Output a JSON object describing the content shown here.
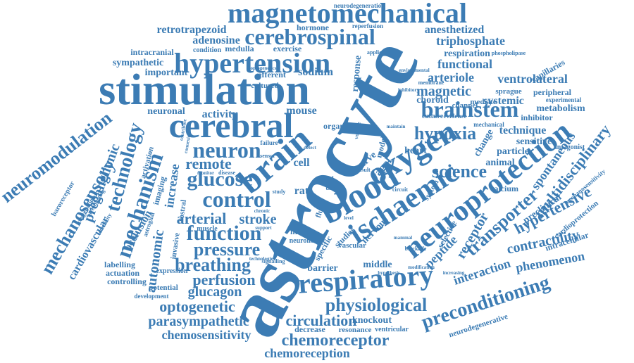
{
  "color": "#3c7cb4",
  "words": [
    {
      "id": "astrocyte",
      "text": "astrocyte"
    },
    {
      "id": "stimulation",
      "text": "stimulation"
    },
    {
      "id": "magnetomechanical",
      "text": "magnetomechanical"
    },
    {
      "id": "hypertension",
      "text": "hypertension"
    },
    {
      "id": "cerebrospinal",
      "text": "cerebrospinal"
    },
    {
      "id": "cerebral",
      "text": "cerebral"
    },
    {
      "id": "brain",
      "text": "brain"
    },
    {
      "id": "oxygen",
      "text": "oxygen"
    },
    {
      "id": "blood",
      "text": "blood"
    },
    {
      "id": "ischaemic",
      "text": "ischaemic"
    },
    {
      "id": "neuroprotection",
      "text": "neuroprotection"
    },
    {
      "id": "respiratory",
      "text": "respiratory"
    },
    {
      "id": "brainstem",
      "text": "brainstem"
    },
    {
      "id": "neuron",
      "text": "neuron"
    },
    {
      "id": "control",
      "text": "control"
    },
    {
      "id": "glucose",
      "text": "glucose"
    },
    {
      "id": "function",
      "text": "function"
    },
    {
      "id": "pressure",
      "text": "pressure"
    },
    {
      "id": "mechanism",
      "text": "mechanism"
    },
    {
      "id": "technology",
      "text": "technology"
    },
    {
      "id": "neuromodulation",
      "text": "neuromodulation"
    },
    {
      "id": "mechanosensory",
      "text": "mechanosensory"
    },
    {
      "id": "preconditioning",
      "text": "preconditioning"
    },
    {
      "id": "physiological",
      "text": "physiological"
    },
    {
      "id": "chemoreceptor",
      "text": "chemoreceptor"
    },
    {
      "id": "chemoreception",
      "text": "chemoreception"
    },
    {
      "id": "circulation",
      "text": "circulation"
    },
    {
      "id": "breathing",
      "text": "breathing"
    },
    {
      "id": "perfusion",
      "text": "perfusion"
    },
    {
      "id": "glucagon",
      "text": "glucagon"
    },
    {
      "id": "optogenetic",
      "text": "optogenetic"
    },
    {
      "id": "parasympathetic",
      "text": "parasympathetic"
    },
    {
      "id": "chemosensitivity",
      "text": "chemosensitivity"
    },
    {
      "id": "hypoxia",
      "text": "hypoxia"
    },
    {
      "id": "science",
      "text": "science"
    },
    {
      "id": "transporter",
      "text": "transporter"
    },
    {
      "id": "multidisciplinary",
      "text": "multidisciplinary"
    },
    {
      "id": "hypertensive",
      "text": "hypertensive"
    },
    {
      "id": "contractility",
      "text": "contractility"
    },
    {
      "id": "phenomenon",
      "text": "phenomenon"
    },
    {
      "id": "interaction",
      "text": "interaction"
    },
    {
      "id": "receptor",
      "text": "receptor"
    },
    {
      "id": "peptide",
      "text": "peptide"
    },
    {
      "id": "arterial",
      "text": "arterial"
    },
    {
      "id": "stroke",
      "text": "stroke"
    },
    {
      "id": "remote",
      "text": "remote"
    },
    {
      "id": "autonomic",
      "text": "autonomic"
    },
    {
      "id": "increase",
      "text": "increase"
    },
    {
      "id": "preganglionic",
      "text": "preganglionic"
    },
    {
      "id": "cardiovascular",
      "text": "cardiovascular"
    },
    {
      "id": "occlusion",
      "text": "occlusion"
    },
    {
      "id": "retrotrapezoid",
      "text": "retrotrapezoid"
    },
    {
      "id": "adenosine",
      "text": "adenosine"
    },
    {
      "id": "triphosphate",
      "text": "triphosphate"
    },
    {
      "id": "anesthetized",
      "text": "anesthetized"
    },
    {
      "id": "respiration",
      "text": "respiration"
    },
    {
      "id": "functional",
      "text": "functional"
    },
    {
      "id": "arteriole",
      "text": "arteriole"
    },
    {
      "id": "ventrolateral",
      "text": "ventrolateral"
    },
    {
      "id": "magnetic",
      "text": "magnetic"
    },
    {
      "id": "systemic",
      "text": "systemic"
    },
    {
      "id": "choroid",
      "text": "choroid"
    },
    {
      "id": "technique",
      "text": "technique"
    },
    {
      "id": "metabolism",
      "text": "metabolism"
    },
    {
      "id": "sensitive",
      "text": "sensitive"
    },
    {
      "id": "particle",
      "text": "particle"
    },
    {
      "id": "animal",
      "text": "animal"
    },
    {
      "id": "change",
      "text": "change"
    },
    {
      "id": "spontaneous",
      "text": "spontaneous"
    },
    {
      "id": "preclinical",
      "text": "preclinical"
    },
    {
      "id": "nervous",
      "text": "nervous"
    },
    {
      "id": "vagal",
      "text": "vagal"
    },
    {
      "id": "nerve",
      "text": "nerve"
    },
    {
      "id": "heart",
      "text": "heart"
    },
    {
      "id": "mouse",
      "text": "mouse"
    },
    {
      "id": "activity",
      "text": "activity"
    },
    {
      "id": "neuronal",
      "text": "neuronal"
    },
    {
      "id": "sodium",
      "text": "sodium"
    },
    {
      "id": "cell",
      "text": "cell"
    },
    {
      "id": "rat",
      "text": "rat"
    },
    {
      "id": "response",
      "text": "response"
    },
    {
      "id": "hormone",
      "text": "hormone"
    },
    {
      "id": "reperfusion",
      "text": "reperfusion"
    },
    {
      "id": "neurodegeneration",
      "text": "neurodegeneration"
    },
    {
      "id": "medulla",
      "text": "medulla"
    },
    {
      "id": "exercise",
      "text": "exercise"
    },
    {
      "id": "condition",
      "text": "condition"
    },
    {
      "id": "intracranial",
      "text": "intracranial"
    },
    {
      "id": "sympathetic",
      "text": "sympathetic"
    },
    {
      "id": "important",
      "text": "important"
    },
    {
      "id": "efferent",
      "text": "efferent"
    },
    {
      "id": "cultured",
      "text": "cultured"
    },
    {
      "id": "capillaries",
      "text": "capillaries"
    },
    {
      "id": "peripheral",
      "text": "peripheral"
    },
    {
      "id": "experimental",
      "text": "experimental"
    },
    {
      "id": "inhibitor",
      "text": "inhibitor"
    },
    {
      "id": "sprague",
      "text": "sprague"
    },
    {
      "id": "mediate",
      "text": "mediate"
    },
    {
      "id": "channel",
      "text": "channel"
    },
    {
      "id": "antagonist",
      "text": "antagonist"
    },
    {
      "id": "calcium",
      "text": "calcium"
    },
    {
      "id": "intracellular",
      "text": "intracellular"
    },
    {
      "id": "cardioprotection",
      "text": "cardioprotection"
    },
    {
      "id": "mechanosensitivity",
      "text": "mechanosensitivity"
    },
    {
      "id": "neurodegenerative",
      "text": "neurodegenerative"
    },
    {
      "id": "selective",
      "text": "selective"
    },
    {
      "id": "knockout",
      "text": "knockout"
    },
    {
      "id": "decrease",
      "text": "decrease"
    },
    {
      "id": "resonance",
      "text": "resonance"
    },
    {
      "id": "ventricular",
      "text": "ventricular"
    },
    {
      "id": "barrier",
      "text": "barrier"
    },
    {
      "id": "middle",
      "text": "middle"
    },
    {
      "id": "vascular",
      "text": "vascular"
    },
    {
      "id": "studies",
      "text": "studies"
    },
    {
      "id": "specific",
      "text": "specific"
    },
    {
      "id": "intake",
      "text": "intake"
    },
    {
      "id": "neurone",
      "text": "neurone"
    },
    {
      "id": "fluid",
      "text": "fluid"
    },
    {
      "id": "muscle",
      "text": "muscle"
    },
    {
      "id": "invasive",
      "text": "invasive"
    },
    {
      "id": "rostral",
      "text": "rostral"
    },
    {
      "id": "labelling",
      "text": "labelling"
    },
    {
      "id": "actuation",
      "text": "actuation"
    },
    {
      "id": "controlling",
      "text": "controlling"
    },
    {
      "id": "expression",
      "text": "expression"
    },
    {
      "id": "potential",
      "text": "potential"
    },
    {
      "id": "development",
      "text": "development"
    },
    {
      "id": "baroreceptor",
      "text": "baroreceptor"
    },
    {
      "id": "oxygenation",
      "text": "oxygenation"
    },
    {
      "id": "investigating",
      "text": "investigating"
    },
    {
      "id": "sensitivity",
      "text": "sensitivity"
    },
    {
      "id": "astroglial",
      "text": "astroglial"
    },
    {
      "id": "imaging",
      "text": "imaging"
    },
    {
      "id": "activation",
      "text": "activation"
    },
    {
      "id": "organ",
      "text": "organ"
    },
    {
      "id": "model",
      "text": "model"
    },
    {
      "id": "culture",
      "text": "culture"
    },
    {
      "id": "evidence",
      "text": "evidence"
    },
    {
      "id": "mechanical",
      "text": "mechanical"
    },
    {
      "id": "membrane",
      "text": "membrane"
    },
    {
      "id": "phospholipase",
      "text": "phospholipase"
    },
    {
      "id": "application",
      "text": "application"
    },
    {
      "id": "environmental",
      "text": "environmental"
    },
    {
      "id": "inhibitory",
      "text": "inhibitory"
    },
    {
      "id": "optogenetics",
      "text": "optogenetics"
    },
    {
      "id": "system",
      "text": "system"
    },
    {
      "id": "signalling",
      "text": "signalling"
    },
    {
      "id": "failure",
      "text": "failure"
    },
    {
      "id": "sensor",
      "text": "sensor"
    },
    {
      "id": "monitor",
      "text": "monitor"
    },
    {
      "id": "disease",
      "text": "disease"
    },
    {
      "id": "chronic",
      "text": "chronic"
    },
    {
      "id": "support",
      "text": "support"
    },
    {
      "id": "level",
      "text": "level"
    },
    {
      "id": "result",
      "text": "result"
    },
    {
      "id": "study",
      "text": "study"
    },
    {
      "id": "increasing",
      "text": "increasing"
    },
    {
      "id": "technologies",
      "text": "technologies"
    },
    {
      "id": "mammal",
      "text": "mammal"
    },
    {
      "id": "blockade",
      "text": "blockade"
    },
    {
      "id": "volume",
      "text": "volume"
    },
    {
      "id": "maintain",
      "text": "maintain"
    },
    {
      "id": "circuit",
      "text": "circuit"
    },
    {
      "id": "data",
      "text": "data"
    },
    {
      "id": "food",
      "text": "food"
    },
    {
      "id": "detect",
      "text": "detect"
    },
    {
      "id": "connexin",
      "text": "connexin"
    },
    {
      "id": "contribute",
      "text": "contribute"
    },
    {
      "id": "hypothesis",
      "text": "hypothesis"
    },
    {
      "id": "modification",
      "text": "modification"
    }
  ]
}
